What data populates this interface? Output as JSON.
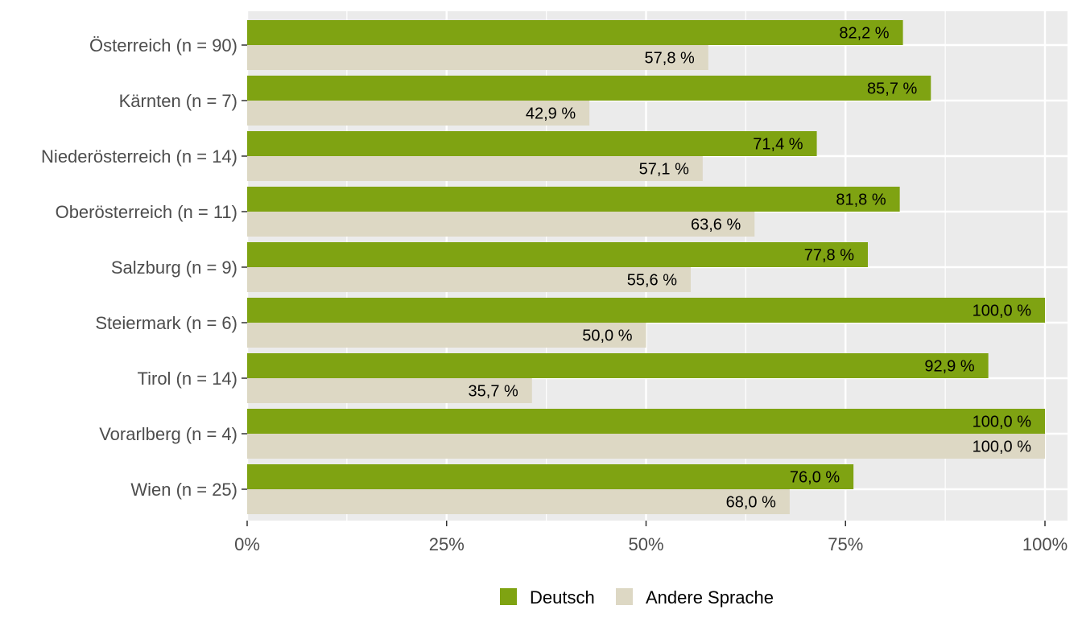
{
  "chart_data": {
    "type": "bar",
    "orientation": "horizontal",
    "categories": [
      "Österreich (n = 90)",
      "Kärnten (n = 7)",
      "Niederösterreich (n = 14)",
      "Oberösterreich (n = 11)",
      "Salzburg (n = 9)",
      "Steiermark (n = 6)",
      "Tirol (n = 14)",
      "Vorarlberg (n = 4)",
      "Wien (n = 25)"
    ],
    "series": [
      {
        "name": "Deutsch",
        "color": "#7fa312",
        "values": [
          82.2,
          85.7,
          71.4,
          81.8,
          77.8,
          100.0,
          92.9,
          100.0,
          76.0
        ],
        "labels": [
          "82,2 %",
          "85,7 %",
          "71,4 %",
          "81,8 %",
          "77,8 %",
          "100,0 %",
          "92,9 %",
          "100,0 %",
          "76,0 %"
        ]
      },
      {
        "name": "Andere Sprache",
        "color": "#ddd8c4",
        "values": [
          57.8,
          42.9,
          57.1,
          63.6,
          55.6,
          50.0,
          35.7,
          100.0,
          68.0
        ],
        "labels": [
          "57,8 %",
          "42,9 %",
          "57,1 %",
          "63,6 %",
          "55,6 %",
          "50,0 %",
          "35,7 %",
          "100,0 %",
          "68,0 %"
        ]
      }
    ],
    "xlim": [
      0,
      100
    ],
    "xticks": [
      0,
      25,
      50,
      75,
      100
    ],
    "xtick_labels": [
      "0%",
      "25%",
      "50%",
      "75%",
      "100%"
    ],
    "title": "",
    "xlabel": "",
    "ylabel": "",
    "grid": true,
    "panel_background": "#ebebeb",
    "legend_position": "bottom"
  }
}
